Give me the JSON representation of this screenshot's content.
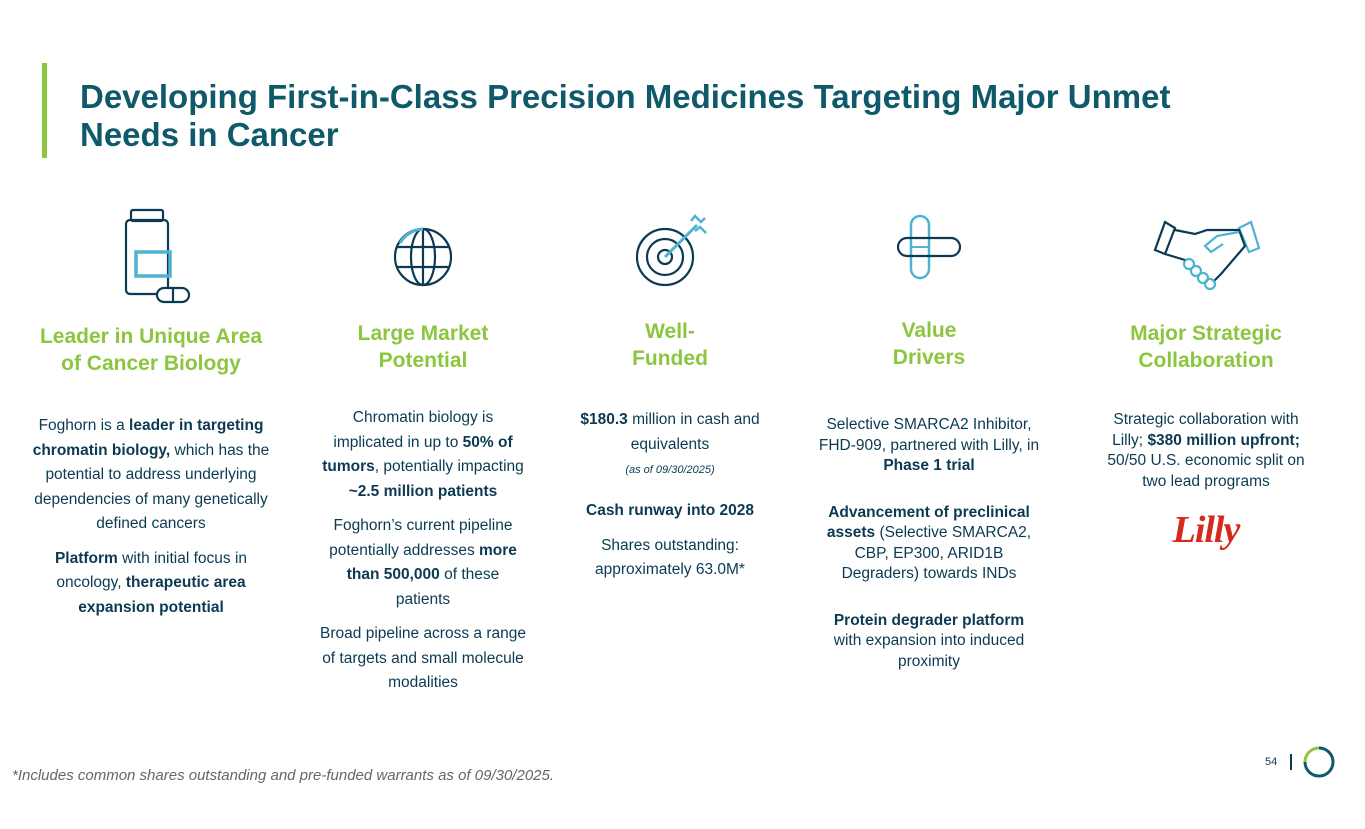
{
  "title": "Developing First-in-Class Precision Medicines Targeting Major Unmet Needs in Cancer",
  "colors": {
    "accent_green": "#8cc63f",
    "navy": "#0b3a52",
    "teal": "#0f5a6a",
    "light_blue": "#4fb3d0",
    "lilly_red": "#d52b1e"
  },
  "columns": [
    {
      "icon": "medicine-bottle-icon",
      "heading": [
        "Leader in Unique Area",
        "of Cancer Biology"
      ],
      "paragraphs": [
        [
          {
            "t": "Foghorn is a ",
            "b": false
          },
          {
            "t": "leader in targeting chromatin biology,",
            "b": true
          },
          {
            "t": " which has the potential to address underlying dependencies of many genetically defined cancers",
            "b": false
          }
        ],
        [
          {
            "t": "Platform",
            "b": true
          },
          {
            "t": " with initial focus in oncology, ",
            "b": false
          },
          {
            "t": "therapeutic area expansion potential",
            "b": true
          }
        ]
      ]
    },
    {
      "icon": "globe-icon",
      "heading": [
        "Large Market",
        "Potential"
      ],
      "paragraphs": [
        [
          {
            "t": "Chromatin biology is implicated in up to ",
            "b": false
          },
          {
            "t": "50% of tumors",
            "b": true
          },
          {
            "t": ", potentially impacting ",
            "b": false
          },
          {
            "t": "~2.5 million patients",
            "b": true
          }
        ],
        [
          {
            "t": "Foghorn’s current pipeline potentially addresses ",
            "b": false
          },
          {
            "t": "more than 500,000",
            "b": true
          },
          {
            "t": " of these patients",
            "b": false
          }
        ],
        [
          {
            "t": "Broad pipeline across a range of targets and small molecule modalities",
            "b": false
          }
        ]
      ]
    },
    {
      "icon": "target-icon",
      "heading": [
        "Well-",
        "Funded"
      ],
      "cash_bold": "$180.3",
      "cash_text": " million in cash and equivalents",
      "as_of": "(as of 09/30/2025)",
      "runway": "Cash runway into 2028",
      "shares": "Shares outstanding: approximately 63.0M*"
    },
    {
      "icon": "capsule-cross-icon",
      "heading": [
        "Value",
        "Drivers"
      ],
      "paragraphs": [
        [
          {
            "t": "Selective SMARCA2 Inhibitor, FHD-909, partnered with Lilly, in ",
            "b": false
          },
          {
            "t": "Phase 1 trial",
            "b": true
          }
        ],
        [
          {
            "t": "Advancement of preclinical assets",
            "b": true
          },
          {
            "t": " (Selective SMARCA2, CBP, EP300, ARID1B Degraders) towards INDs",
            "b": false
          }
        ],
        [
          {
            "t": "Protein degrader platform",
            "b": true
          },
          {
            "t": " with expansion into induced proximity",
            "b": false
          }
        ]
      ]
    },
    {
      "icon": "handshake-icon",
      "heading": [
        "Major Strategic",
        "Collaboration"
      ],
      "paragraphs": [
        [
          {
            "t": "Strategic collaboration with Lilly; ",
            "b": false
          },
          {
            "t": "$380 million upfront;",
            "b": true
          },
          {
            "t": " 50/50 U.S. economic split on two lead programs",
            "b": false
          }
        ]
      ],
      "partner_logo": "Lilly"
    }
  ],
  "footnote": "*Includes common shares outstanding and pre-funded warrants as of 09/30/2025.",
  "page_number": "54"
}
